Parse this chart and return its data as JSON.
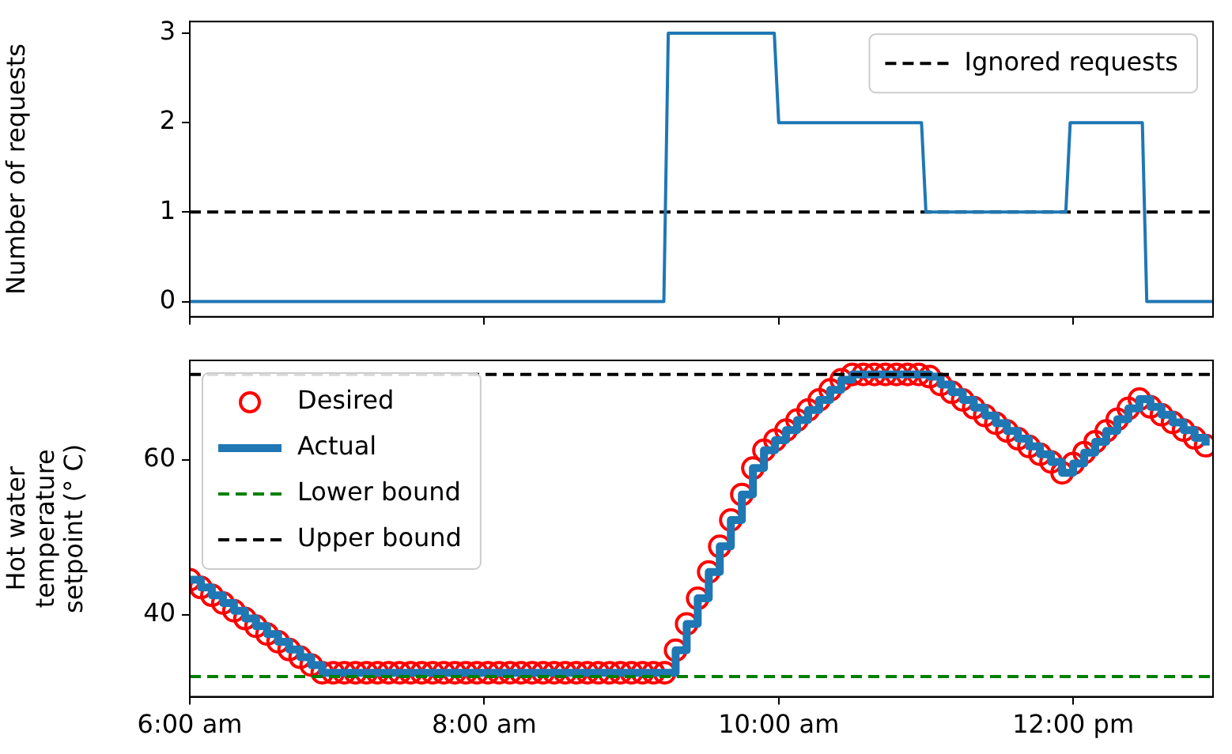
{
  "chart_data": [
    {
      "type": "line",
      "ylabel": "Number of requests",
      "x": [
        6,
        9.22,
        9.25,
        9.97,
        10,
        10.97,
        11,
        11.95,
        11.98,
        12.47,
        12.5,
        12.95
      ],
      "series": [
        {
          "color": "#1f77b4",
          "values": [
            0,
            0,
            3,
            3,
            2,
            2,
            1,
            1,
            2,
            2,
            0,
            0
          ]
        }
      ],
      "ref_lines": [
        {
          "axis": "y",
          "value": 1,
          "label": "Ignored requests",
          "color": "#000000",
          "line_style": "dashed"
        }
      ],
      "xlim": [
        6,
        12.95
      ],
      "xticks": [
        6,
        8,
        10,
        12
      ],
      "ylim": [
        -0.17,
        3.13
      ],
      "yticks": [
        0,
        1,
        2,
        3
      ],
      "grid": false,
      "legend": "top right",
      "tick_labels": "y"
    },
    {
      "type": "step",
      "ylabel": "Hot water\ntemperature\nsetpoint (° C)",
      "x": [
        6,
        6.075,
        6.15,
        6.225,
        6.3,
        6.375,
        6.45,
        6.525,
        6.6,
        6.675,
        6.75,
        6.825,
        6.9,
        6.975,
        7.05,
        7.125,
        7.2,
        7.275,
        7.35,
        7.425,
        7.5,
        7.575,
        7.65,
        7.725,
        7.8,
        7.875,
        7.95,
        8.025,
        8.1,
        8.175,
        8.25,
        8.325,
        8.4,
        8.475,
        8.55,
        8.625,
        8.7,
        8.775,
        8.85,
        8.925,
        9,
        9.075,
        9.15,
        9.225,
        9.3,
        9.375,
        9.45,
        9.525,
        9.6,
        9.675,
        9.75,
        9.825,
        9.9,
        9.975,
        10.05,
        10.125,
        10.2,
        10.275,
        10.35,
        10.425,
        10.5,
        10.575,
        10.65,
        10.725,
        10.8,
        10.875,
        10.95,
        11.025,
        11.1,
        11.175,
        11.25,
        11.325,
        11.4,
        11.475,
        11.55,
        11.625,
        11.7,
        11.775,
        11.85,
        11.925,
        12,
        12.075,
        12.15,
        12.225,
        12.3,
        12.375,
        12.45,
        12.525,
        12.6,
        12.675,
        12.75,
        12.825,
        12.9
      ],
      "series": [
        {
          "name": "Desired",
          "type": "scatter",
          "marker": "circle",
          "color": "#ff0000",
          "values": [
            44.5,
            43.5,
            42.5,
            41.5,
            40.5,
            39.5,
            38.5,
            37.5,
            36.5,
            35.5,
            34.5,
            33.5,
            32.5,
            32.5,
            32.5,
            32.5,
            32.5,
            32.5,
            32.5,
            32.5,
            32.5,
            32.5,
            32.5,
            32.5,
            32.5,
            32.5,
            32.5,
            32.5,
            32.5,
            32.5,
            32.5,
            32.5,
            32.5,
            32.5,
            32.5,
            32.5,
            32.5,
            32.5,
            32.5,
            32.5,
            32.5,
            32.5,
            32.5,
            32.5,
            35.4,
            38.8,
            42.1,
            45.5,
            48.8,
            52.2,
            55.5,
            58.9,
            61.2,
            62.5,
            63.8,
            65.1,
            66.4,
            67.7,
            69,
            70.3,
            71,
            71,
            71,
            71,
            71,
            71,
            71,
            70.7,
            69.7,
            68.7,
            67.7,
            66.7,
            65.7,
            64.7,
            63.7,
            62.7,
            61.7,
            60.7,
            59.7,
            58.3,
            59.5,
            60.9,
            62.3,
            63.7,
            65.2,
            66.6,
            67.8,
            66.8,
            65.8,
            64.8,
            63.8,
            62.8,
            61.8
          ]
        },
        {
          "name": "Actual",
          "color": "#1f77b4",
          "values": [
            44.5,
            43.5,
            42.5,
            41.5,
            40.5,
            39.5,
            38.5,
            37.5,
            36.5,
            35.5,
            34.5,
            33.5,
            32.5,
            32.5,
            32.5,
            32.5,
            32.5,
            32.5,
            32.5,
            32.5,
            32.5,
            32.5,
            32.5,
            32.5,
            32.5,
            32.5,
            32.5,
            32.5,
            32.5,
            32.5,
            32.5,
            32.5,
            32.5,
            32.5,
            32.5,
            32.5,
            32.5,
            32.5,
            32.5,
            32.5,
            32.5,
            32.5,
            32.5,
            32.5,
            35.4,
            38.8,
            42.1,
            45.5,
            48.8,
            52.2,
            55.5,
            58.9,
            61.2,
            62.5,
            63.8,
            65.1,
            66.4,
            67.7,
            69,
            70.3,
            71,
            71,
            71,
            71,
            71,
            71,
            71,
            70.7,
            69.7,
            68.7,
            67.7,
            66.7,
            65.7,
            64.7,
            63.7,
            62.7,
            61.7,
            60.7,
            59.7,
            58.3,
            59.5,
            60.9,
            62.3,
            63.7,
            65.2,
            66.6,
            67.8,
            66.8,
            65.8,
            64.8,
            63.8,
            62.8,
            61.8
          ]
        }
      ],
      "ref_lines": [
        {
          "axis": "y",
          "value": 32,
          "label": "Lower bound",
          "color": "#008000",
          "line_style": "dashed"
        },
        {
          "axis": "y",
          "value": 71,
          "label": "Upper bound",
          "color": "#000000",
          "line_style": "dashed"
        }
      ],
      "xlim": [
        6,
        12.95
      ],
      "xticks": [
        {
          "value": 6,
          "label": "6:00 am"
        },
        {
          "value": 8,
          "label": "8:00 am"
        },
        {
          "value": 10,
          "label": "10:00 am"
        },
        {
          "value": 12,
          "label": "12:00 pm"
        }
      ],
      "ylim": [
        29.4,
        72.8
      ],
      "yticks": [
        40,
        60
      ],
      "grid": false,
      "legend": "top left"
    }
  ]
}
